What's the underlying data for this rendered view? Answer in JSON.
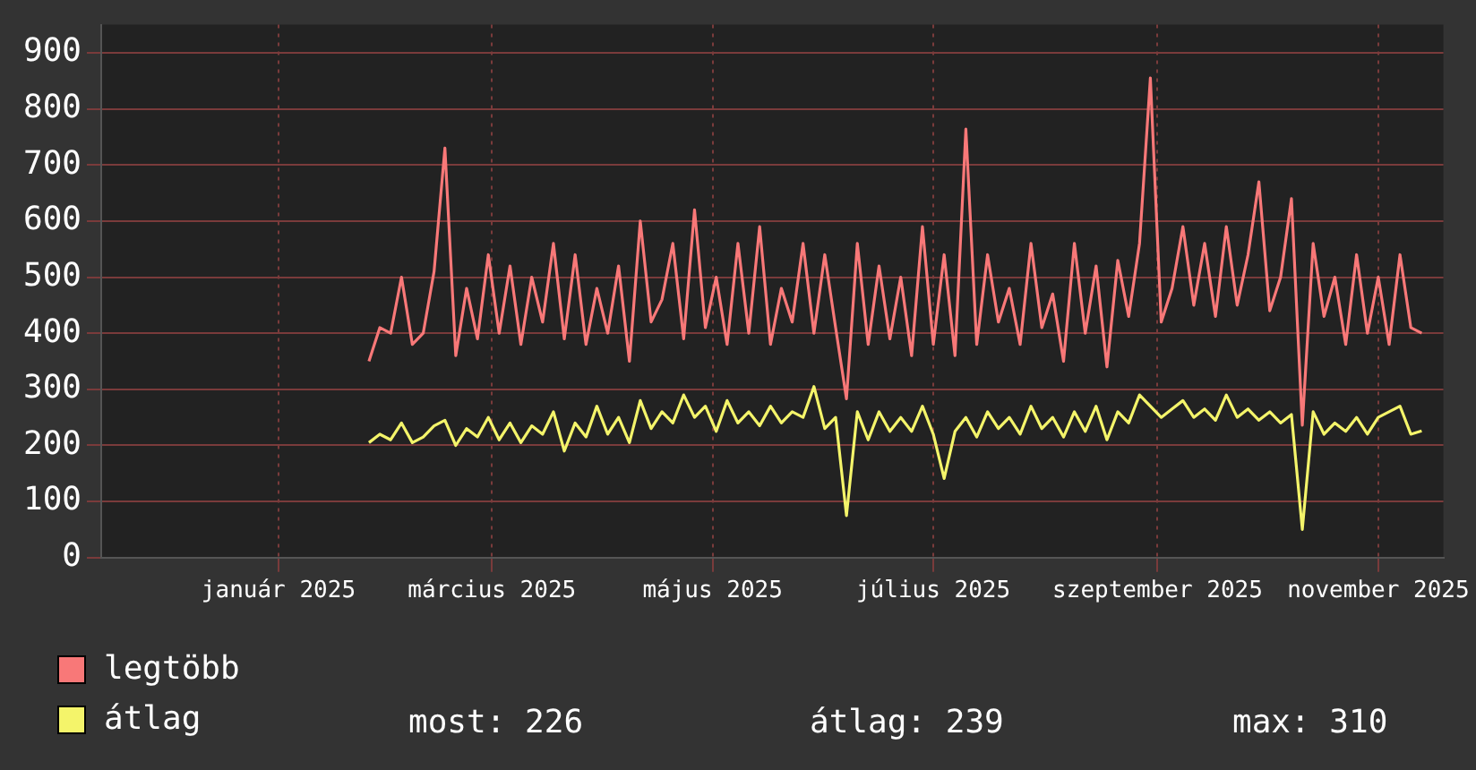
{
  "chart_data": {
    "type": "line",
    "x": [
      "2025-01-26",
      "2025-01-29",
      "2025-02-01",
      "2025-02-04",
      "2025-02-07",
      "2025-02-10",
      "2025-02-13",
      "2025-02-16",
      "2025-02-19",
      "2025-02-22",
      "2025-02-25",
      "2025-02-28",
      "2025-03-03",
      "2025-03-06",
      "2025-03-09",
      "2025-03-12",
      "2025-03-15",
      "2025-03-18",
      "2025-03-21",
      "2025-03-24",
      "2025-03-27",
      "2025-03-30",
      "2025-04-02",
      "2025-04-05",
      "2025-04-08",
      "2025-04-11",
      "2025-04-14",
      "2025-04-17",
      "2025-04-20",
      "2025-04-23",
      "2025-04-26",
      "2025-04-29",
      "2025-05-02",
      "2025-05-05",
      "2025-05-08",
      "2025-05-11",
      "2025-05-14",
      "2025-05-17",
      "2025-05-20",
      "2025-05-23",
      "2025-05-26",
      "2025-05-29",
      "2025-06-01",
      "2025-06-04",
      "2025-06-07",
      "2025-06-10",
      "2025-06-13",
      "2025-06-16",
      "2025-06-19",
      "2025-06-22",
      "2025-06-25",
      "2025-06-28",
      "2025-07-01",
      "2025-07-04",
      "2025-07-07",
      "2025-07-10",
      "2025-07-13",
      "2025-07-16",
      "2025-07-19",
      "2025-07-22",
      "2025-07-25",
      "2025-07-28",
      "2025-07-31",
      "2025-08-03",
      "2025-08-06",
      "2025-08-09",
      "2025-08-12",
      "2025-08-15",
      "2025-08-18",
      "2025-08-21",
      "2025-08-24",
      "2025-08-27",
      "2025-08-30",
      "2025-09-02",
      "2025-09-05",
      "2025-09-08",
      "2025-09-11",
      "2025-09-14",
      "2025-09-17",
      "2025-09-20",
      "2025-09-23",
      "2025-09-26",
      "2025-09-29",
      "2025-10-02",
      "2025-10-05",
      "2025-10-08",
      "2025-10-11",
      "2025-10-14",
      "2025-10-17",
      "2025-10-20",
      "2025-10-23",
      "2025-10-26",
      "2025-10-29",
      "2025-11-01",
      "2025-11-04",
      "2025-11-07",
      "2025-11-10",
      "2025-11-13"
    ],
    "series": [
      {
        "name": "legtöbb",
        "color": "#f87878",
        "values": [
          350,
          410,
          400,
          500,
          380,
          400,
          510,
          730,
          360,
          480,
          390,
          540,
          400,
          520,
          380,
          500,
          420,
          560,
          390,
          540,
          380,
          480,
          400,
          520,
          350,
          600,
          420,
          460,
          560,
          390,
          620,
          410,
          500,
          380,
          560,
          400,
          590,
          380,
          480,
          420,
          560,
          400,
          540,
          410,
          283,
          560,
          380,
          520,
          390,
          500,
          360,
          590,
          380,
          540,
          360,
          764,
          380,
          540,
          420,
          480,
          380,
          560,
          410,
          470,
          350,
          560,
          400,
          520,
          340,
          530,
          430,
          560,
          855,
          420,
          480,
          590,
          450,
          560,
          430,
          590,
          450,
          540,
          670,
          440,
          500,
          640,
          236,
          560,
          430,
          500,
          380,
          540,
          400,
          500,
          380,
          540,
          410,
          400
        ]
      },
      {
        "name": "átlag",
        "color": "#f4f46a",
        "values": [
          205,
          220,
          210,
          240,
          205,
          215,
          235,
          245,
          200,
          230,
          215,
          250,
          210,
          240,
          205,
          235,
          220,
          260,
          190,
          240,
          215,
          270,
          220,
          250,
          205,
          280,
          230,
          260,
          240,
          290,
          250,
          270,
          225,
          280,
          240,
          260,
          235,
          270,
          240,
          260,
          250,
          305,
          230,
          250,
          75,
          260,
          210,
          260,
          225,
          250,
          225,
          270,
          220,
          141,
          225,
          250,
          215,
          260,
          230,
          250,
          220,
          270,
          230,
          250,
          215,
          260,
          225,
          270,
          210,
          260,
          240,
          290,
          270,
          250,
          265,
          280,
          250,
          265,
          245,
          290,
          250,
          265,
          245,
          260,
          240,
          255,
          50,
          260,
          220,
          240,
          225,
          250,
          220,
          250,
          260,
          270,
          220,
          226
        ]
      }
    ],
    "xlim": [
      "2024-11-13",
      "2025-11-19"
    ],
    "xticks": [
      {
        "value": "2025-01-01",
        "label": "január 2025"
      },
      {
        "value": "2025-03-01",
        "label": "március 2025"
      },
      {
        "value": "2025-05-01",
        "label": "május 2025"
      },
      {
        "value": "2025-07-01",
        "label": "július 2025"
      },
      {
        "value": "2025-09-01",
        "label": "szeptember 2025"
      },
      {
        "value": "2025-11-01",
        "label": "november 2025"
      }
    ],
    "ylim": [
      0,
      950
    ],
    "yticks": [
      0,
      100,
      200,
      300,
      400,
      500,
      600,
      700,
      800,
      900
    ],
    "grid": true,
    "legend": "bottom left",
    "marker": "none",
    "line_style": "solid",
    "annotations": [
      "most: 226",
      "átlag: 239",
      "max: 310"
    ]
  }
}
